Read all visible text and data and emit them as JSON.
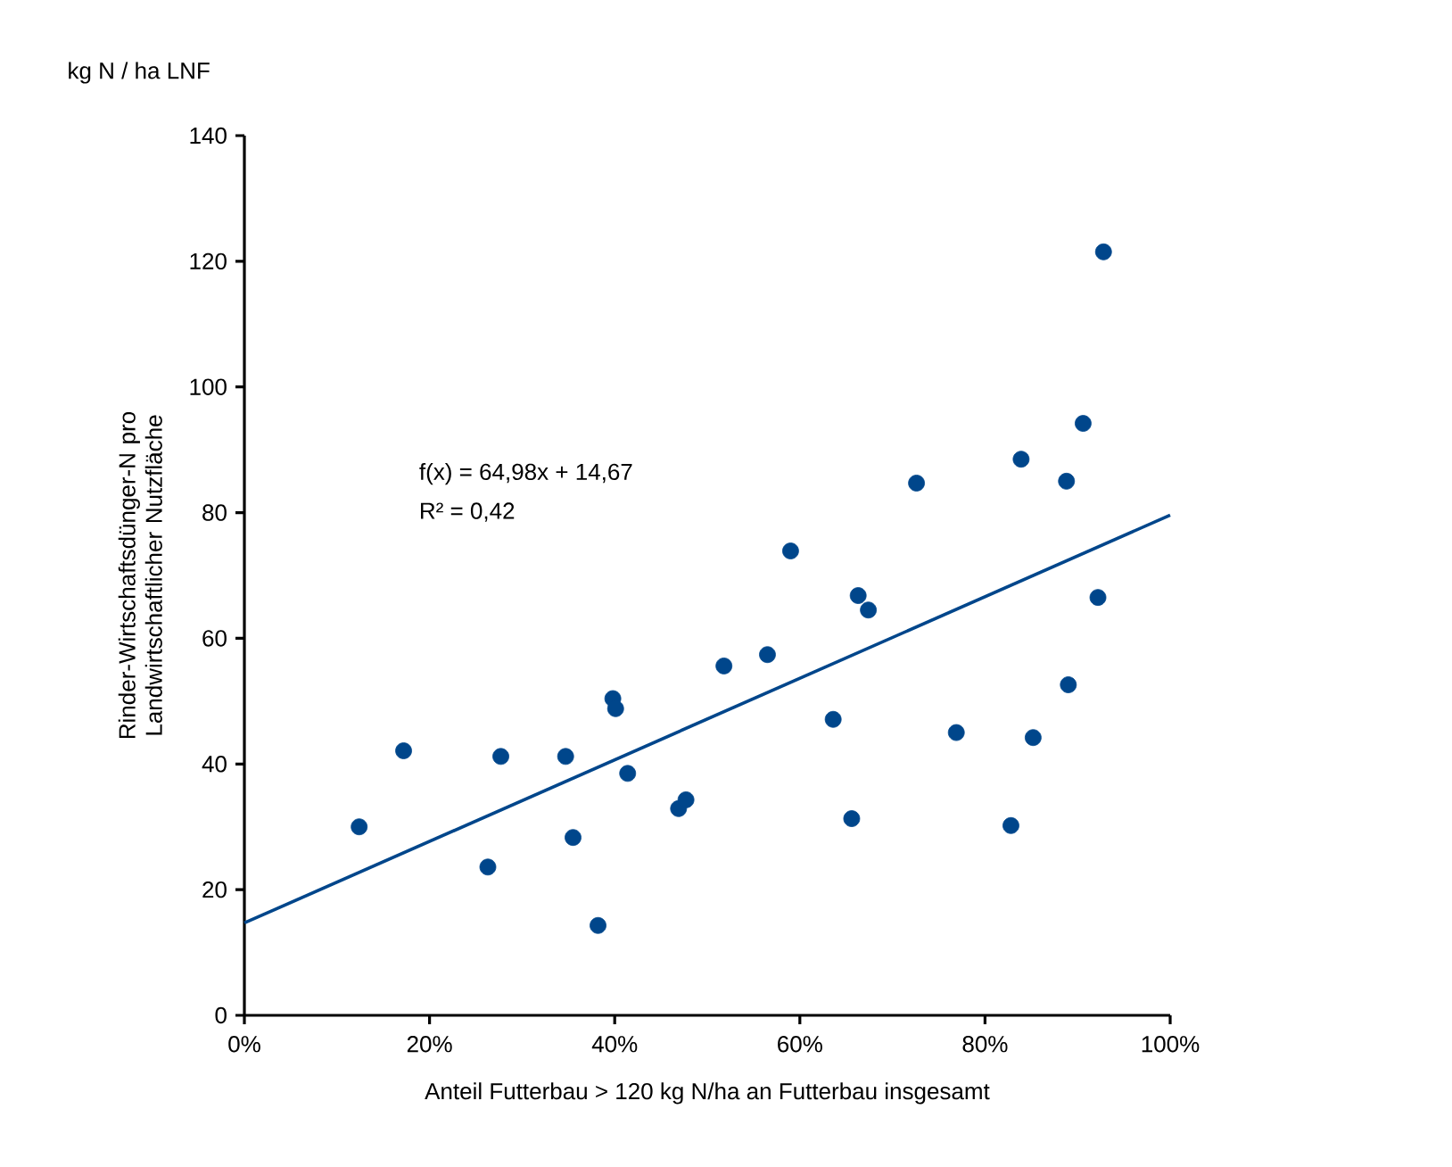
{
  "chart_data": {
    "type": "scatter",
    "xlabel": "Anteil Futterbau > 120 kg N/ha an Futterbau insgesamt",
    "ylabel": "Rinder-Wirtschaftsdünger-N pro Landwirtschaftlicher Nutzfläche",
    "annotations": [
      "kg N / ha LNF",
      "f(x) = 64,98x + 14,67",
      "R² = 0,42"
    ],
    "xlim": [
      0,
      1
    ],
    "ylim": [
      0,
      140
    ],
    "xticks": [
      {
        "value": 0,
        "label": "0%"
      },
      {
        "value": 0.2,
        "label": "20%"
      },
      {
        "value": 0.4,
        "label": "40%"
      },
      {
        "value": 0.6,
        "label": "60%"
      },
      {
        "value": 0.8,
        "label": "80%"
      },
      {
        "value": 1,
        "label": "100%"
      }
    ],
    "yticks": [
      0,
      20,
      40,
      60,
      80,
      100,
      120,
      140
    ],
    "grid": false,
    "series": [
      {
        "color": "#00468b",
        "marker": "circle",
        "x": [
          0.124,
          0.172,
          0.277,
          0.263,
          0.347,
          0.355,
          0.382,
          0.398,
          0.401,
          0.414,
          0.469,
          0.477,
          0.518,
          0.565,
          0.59,
          0.636,
          0.656,
          0.663,
          0.674,
          0.726,
          0.769,
          0.828,
          0.839,
          0.852,
          0.888,
          0.89,
          0.906,
          0.922,
          0.928
        ],
        "values": [
          30.0,
          42.1,
          41.2,
          23.6,
          41.2,
          28.3,
          14.3,
          50.4,
          48.8,
          38.5,
          32.9,
          34.3,
          55.6,
          57.4,
          73.9,
          47.1,
          31.3,
          66.8,
          64.5,
          84.7,
          45.0,
          30.2,
          88.5,
          44.2,
          85.0,
          52.6,
          94.2,
          66.5,
          121.5
        ]
      },
      {
        "type": "line",
        "color": "#00468b",
        "marker": "none",
        "x": [
          0,
          1
        ],
        "values": [
          14.7,
          79.6
        ]
      }
    ]
  }
}
